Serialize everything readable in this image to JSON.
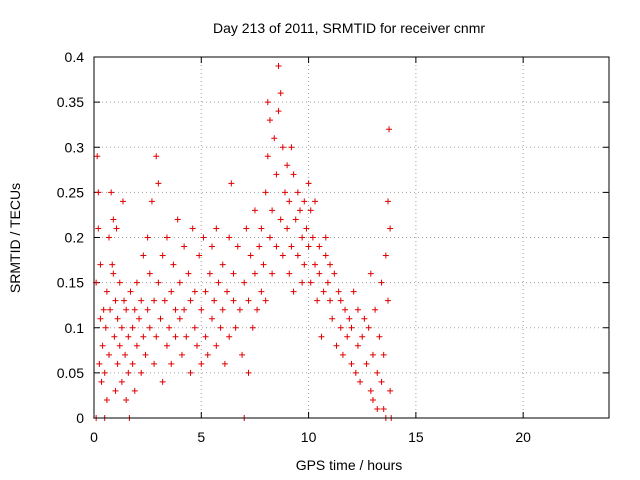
{
  "chart_data": {
    "type": "scatter",
    "title": "Day 213 of 2011, SRMTID for receiver cnmr",
    "xlabel": "GPS time / hours",
    "ylabel": "SRMTID / TECUs",
    "xlim": [
      0,
      24
    ],
    "ylim": [
      0,
      0.4
    ],
    "xticks": [
      0,
      5,
      10,
      15,
      20
    ],
    "xtick_labels": [
      "0",
      "5",
      "10",
      "15",
      "20"
    ],
    "yticks": [
      0,
      0.05,
      0.1,
      0.15,
      0.2,
      0.25,
      0.3,
      0.35,
      0.4
    ],
    "ytick_labels": [
      "0",
      "0.05",
      "0.1",
      "0.15",
      "0.2",
      "0.25",
      "0.3",
      "0.35",
      "0.4"
    ],
    "grid": true,
    "marker": "+",
    "color": "#e00000",
    "series": [
      {
        "name": "SRMTID",
        "points": [
          [
            0.1,
            0.0
          ],
          [
            0.1,
            0.15
          ],
          [
            0.15,
            0.29
          ],
          [
            0.2,
            0.21
          ],
          [
            0.2,
            0.25
          ],
          [
            0.25,
            0.06
          ],
          [
            0.3,
            0.11
          ],
          [
            0.3,
            0.17
          ],
          [
            0.35,
            0.04
          ],
          [
            0.4,
            0.08
          ],
          [
            0.45,
            0.12
          ],
          [
            0.5,
            0.0
          ],
          [
            0.5,
            0.05
          ],
          [
            0.55,
            0.1
          ],
          [
            0.6,
            0.14
          ],
          [
            0.6,
            0.02
          ],
          [
            0.7,
            0.07
          ],
          [
            0.7,
            0.2
          ],
          [
            0.75,
            0.12
          ],
          [
            0.8,
            0.25
          ],
          [
            0.85,
            0.17
          ],
          [
            0.9,
            0.22
          ],
          [
            0.9,
            0.16
          ],
          [
            0.95,
            0.09
          ],
          [
            1.0,
            0.03
          ],
          [
            1.0,
            0.13
          ],
          [
            1.05,
            0.21
          ],
          [
            1.1,
            0.06
          ],
          [
            1.1,
            0.11
          ],
          [
            1.2,
            0.08
          ],
          [
            1.2,
            0.15
          ],
          [
            1.3,
            0.04
          ],
          [
            1.3,
            0.1
          ],
          [
            1.35,
            0.24
          ],
          [
            1.4,
            0.13
          ],
          [
            1.45,
            0.07
          ],
          [
            1.5,
            0.02
          ],
          [
            1.5,
            0.12
          ],
          [
            1.6,
            0.09
          ],
          [
            1.6,
            0.05
          ],
          [
            1.65,
            0.0
          ],
          [
            1.7,
            0.14
          ],
          [
            1.8,
            0.1
          ],
          [
            1.8,
            0.06
          ],
          [
            1.9,
            0.03
          ],
          [
            1.9,
            0.12
          ],
          [
            2.0,
            0.08
          ],
          [
            2.0,
            0.15
          ],
          [
            2.1,
            0.11
          ],
          [
            2.2,
            0.05
          ],
          [
            2.2,
            0.13
          ],
          [
            2.3,
            0.09
          ],
          [
            2.3,
            0.18
          ],
          [
            2.4,
            0.07
          ],
          [
            2.5,
            0.12
          ],
          [
            2.5,
            0.2
          ],
          [
            2.6,
            0.1
          ],
          [
            2.6,
            0.16
          ],
          [
            2.7,
            0.24
          ],
          [
            2.8,
            0.13
          ],
          [
            2.8,
            0.06
          ],
          [
            2.9,
            0.29
          ],
          [
            2.9,
            0.09
          ],
          [
            3.0,
            0.26
          ],
          [
            3.0,
            0.15
          ],
          [
            3.1,
            0.11
          ],
          [
            3.2,
            0.04
          ],
          [
            3.2,
            0.18
          ],
          [
            3.3,
            0.13
          ],
          [
            3.4,
            0.08
          ],
          [
            3.4,
            0.2
          ],
          [
            3.5,
            0.1
          ],
          [
            3.6,
            0.14
          ],
          [
            3.6,
            0.06
          ],
          [
            3.7,
            0.17
          ],
          [
            3.8,
            0.12
          ],
          [
            3.8,
            0.09
          ],
          [
            3.9,
            0.22
          ],
          [
            4.0,
            0.11
          ],
          [
            4.0,
            0.15
          ],
          [
            4.1,
            0.07
          ],
          [
            4.2,
            0.19
          ],
          [
            4.2,
            0.12
          ],
          [
            4.3,
            0.09
          ],
          [
            4.4,
            0.16
          ],
          [
            4.5,
            0.05
          ],
          [
            4.5,
            0.13
          ],
          [
            4.6,
            0.21
          ],
          [
            4.7,
            0.1
          ],
          [
            4.7,
            0.14
          ],
          [
            4.8,
            0.08
          ],
          [
            4.9,
            0.18
          ],
          [
            5.0,
            0.12
          ],
          [
            5.0,
            0.06
          ],
          [
            5.1,
            0.2
          ],
          [
            5.2,
            0.14
          ],
          [
            5.2,
            0.09
          ],
          [
            5.3,
            0.07
          ],
          [
            5.4,
            0.16
          ],
          [
            5.5,
            0.11
          ],
          [
            5.5,
            0.19
          ],
          [
            5.6,
            0.13
          ],
          [
            5.7,
            0.08
          ],
          [
            5.7,
            0.21
          ],
          [
            5.8,
            0.15
          ],
          [
            5.9,
            0.1
          ],
          [
            6.0,
            0.17
          ],
          [
            6.0,
            0.12
          ],
          [
            6.1,
            0.06
          ],
          [
            6.2,
            0.14
          ],
          [
            6.3,
            0.09
          ],
          [
            6.3,
            0.2
          ],
          [
            6.4,
            0.26
          ],
          [
            6.5,
            0.13
          ],
          [
            6.5,
            0.16
          ],
          [
            6.6,
            0.1
          ],
          [
            6.7,
            0.19
          ],
          [
            6.8,
            0.12
          ],
          [
            6.9,
            0.07
          ],
          [
            7.0,
            0.15
          ],
          [
            7.0,
            0.0
          ],
          [
            7.1,
            0.21
          ],
          [
            7.2,
            0.05
          ],
          [
            7.2,
            0.13
          ],
          [
            7.3,
            0.18
          ],
          [
            7.4,
            0.1
          ],
          [
            7.5,
            0.16
          ],
          [
            7.5,
            0.23
          ],
          [
            7.6,
            0.12
          ],
          [
            7.7,
            0.19
          ],
          [
            7.8,
            0.14
          ],
          [
            7.8,
            0.21
          ],
          [
            7.9,
            0.17
          ],
          [
            8.0,
            0.25
          ],
          [
            8.0,
            0.13
          ],
          [
            8.1,
            0.29
          ],
          [
            8.1,
            0.35
          ],
          [
            8.2,
            0.33
          ],
          [
            8.2,
            0.2
          ],
          [
            8.3,
            0.23
          ],
          [
            8.3,
            0.16
          ],
          [
            8.4,
            0.31
          ],
          [
            8.5,
            0.27
          ],
          [
            8.5,
            0.19
          ],
          [
            8.6,
            0.34
          ],
          [
            8.6,
            0.39
          ],
          [
            8.7,
            0.36
          ],
          [
            8.7,
            0.22
          ],
          [
            8.8,
            0.18
          ],
          [
            8.8,
            0.3
          ],
          [
            8.9,
            0.25
          ],
          [
            9.0,
            0.28
          ],
          [
            9.0,
            0.21
          ],
          [
            9.1,
            0.24
          ],
          [
            9.1,
            0.16
          ],
          [
            9.2,
            0.3
          ],
          [
            9.2,
            0.19
          ],
          [
            9.3,
            0.27
          ],
          [
            9.3,
            0.14
          ],
          [
            9.4,
            0.22
          ],
          [
            9.5,
            0.25
          ],
          [
            9.5,
            0.18
          ],
          [
            9.6,
            0.23
          ],
          [
            9.7,
            0.2
          ],
          [
            9.7,
            0.15
          ],
          [
            9.8,
            0.24
          ],
          [
            9.8,
            0.17
          ],
          [
            9.9,
            0.21
          ],
          [
            10.0,
            0.19
          ],
          [
            10.0,
            0.26
          ],
          [
            10.1,
            0.23
          ],
          [
            10.1,
            0.15
          ],
          [
            10.2,
            0.2
          ],
          [
            10.3,
            0.17
          ],
          [
            10.3,
            0.24
          ],
          [
            10.4,
            0.13
          ],
          [
            10.5,
            0.19
          ],
          [
            10.5,
            0.16
          ],
          [
            10.6,
            0.09
          ],
          [
            10.7,
            0.14
          ],
          [
            10.8,
            0.2
          ],
          [
            10.8,
            0.18
          ],
          [
            10.9,
            0.15
          ],
          [
            11.0,
            0.13
          ],
          [
            11.0,
            0.17
          ],
          [
            11.1,
            0.11
          ],
          [
            11.2,
            0.16
          ],
          [
            11.3,
            0.08
          ],
          [
            11.4,
            0.14
          ],
          [
            11.5,
            0.1
          ],
          [
            11.5,
            0.13
          ],
          [
            11.6,
            0.07
          ],
          [
            11.7,
            0.12
          ],
          [
            11.8,
            0.09
          ],
          [
            11.9,
            0.11
          ],
          [
            12.0,
            0.06
          ],
          [
            12.0,
            0.1
          ],
          [
            12.1,
            0.14
          ],
          [
            12.2,
            0.05
          ],
          [
            12.3,
            0.08
          ],
          [
            12.3,
            0.12
          ],
          [
            12.4,
            0.04
          ],
          [
            12.5,
            0.09
          ],
          [
            12.6,
            0.11
          ],
          [
            12.7,
            0.06
          ],
          [
            12.8,
            0.1
          ],
          [
            12.9,
            0.16
          ],
          [
            12.9,
            0.03
          ],
          [
            13.0,
            0.07
          ],
          [
            13.0,
            0.02
          ],
          [
            13.1,
            0.12
          ],
          [
            13.2,
            0.05
          ],
          [
            13.2,
            0.01
          ],
          [
            13.3,
            0.09
          ],
          [
            13.4,
            0.15
          ],
          [
            13.4,
            0.04
          ],
          [
            13.5,
            0.01
          ],
          [
            13.5,
            0.07
          ],
          [
            13.6,
            0.18
          ],
          [
            13.6,
            0.0
          ],
          [
            13.7,
            0.13
          ],
          [
            13.7,
            0.24
          ],
          [
            13.75,
            0.32
          ],
          [
            13.8,
            0.21
          ],
          [
            13.8,
            0.03
          ],
          [
            13.85,
            0.0
          ]
        ]
      }
    ]
  }
}
